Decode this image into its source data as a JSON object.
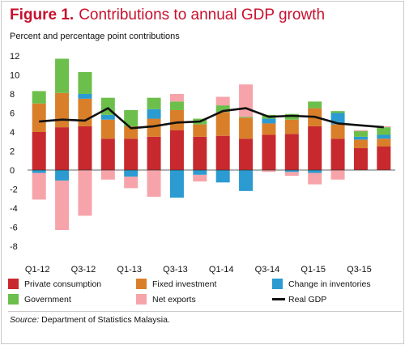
{
  "figure": {
    "label": "Figure 1.",
    "title": "Contributions to annual GDP growth",
    "subtitle": "Percent and percentage point contributions",
    "source_label": "Source:",
    "source_text": "Department of Statistics Malaysia."
  },
  "colors": {
    "title": "#c8102e",
    "Private consumption": "#c8292e",
    "Fixed investment": "#d97f2a",
    "Change in inventories": "#2b9bd1",
    "Government": "#6cbf4b",
    "Net exports": "#f6a4aa",
    "Real GDP": "#111111"
  },
  "chart_data": {
    "type": "bar",
    "stacked": true,
    "title": "Contributions to annual GDP growth",
    "ylabel": "Percent and percentage point contributions",
    "xlabel": "",
    "ylim": [
      -8,
      12
    ],
    "yticks": [
      12,
      10,
      8,
      6,
      4,
      2,
      0,
      -2,
      -4,
      -6,
      -8
    ],
    "grid": false,
    "legend_position": "bottom",
    "x_tick_labels": [
      "Q1-12",
      "Q3-12",
      "Q1-13",
      "Q3-13",
      "Q1-14",
      "Q3-14",
      "Q1-15",
      "Q3-15"
    ],
    "categories": [
      "Q1-12",
      "Q2-12",
      "Q3-12",
      "Q4-12",
      "Q1-13",
      "Q2-13",
      "Q3-13",
      "Q4-13",
      "Q1-14",
      "Q2-14",
      "Q3-14",
      "Q4-14",
      "Q1-15",
      "Q2-15",
      "Q3-15",
      "Q4-15"
    ],
    "series": [
      {
        "name": "Private consumption",
        "values": [
          4.0,
          4.5,
          4.6,
          3.3,
          3.3,
          3.5,
          4.2,
          3.5,
          3.6,
          3.3,
          3.7,
          3.8,
          4.6,
          3.3,
          2.3,
          2.5
        ]
      },
      {
        "name": "Fixed investment",
        "values": [
          3.0,
          3.6,
          2.9,
          2.0,
          1.3,
          1.9,
          2.1,
          1.3,
          2.5,
          2.2,
          1.2,
          1.5,
          1.9,
          1.5,
          0.9,
          0.8
        ]
      },
      {
        "name": "Change in inventories",
        "values": [
          -0.3,
          -1.1,
          0.5,
          0.5,
          -0.7,
          1.0,
          -2.9,
          -0.5,
          -1.3,
          -2.2,
          0.5,
          -0.2,
          -0.3,
          1.2,
          0.3,
          0.4
        ]
      },
      {
        "name": "Government",
        "values": [
          1.3,
          3.6,
          2.3,
          1.8,
          1.7,
          1.2,
          0.9,
          0.6,
          0.7,
          0.1,
          0.4,
          0.6,
          0.7,
          0.2,
          0.6,
          0.8
        ]
      },
      {
        "name": "Net exports",
        "values": [
          -2.8,
          -5.2,
          -4.8,
          -1.0,
          -1.2,
          -2.8,
          0.8,
          -0.7,
          0.9,
          3.4,
          -0.2,
          -0.4,
          -1.2,
          -1.0,
          0.1,
          0.1
        ]
      },
      {
        "name": "Real GDP",
        "type": "line",
        "values": [
          5.1,
          5.3,
          5.2,
          6.5,
          4.4,
          4.6,
          5.0,
          5.1,
          6.2,
          6.5,
          5.6,
          5.7,
          5.6,
          4.9,
          4.7,
          4.5
        ]
      }
    ]
  }
}
